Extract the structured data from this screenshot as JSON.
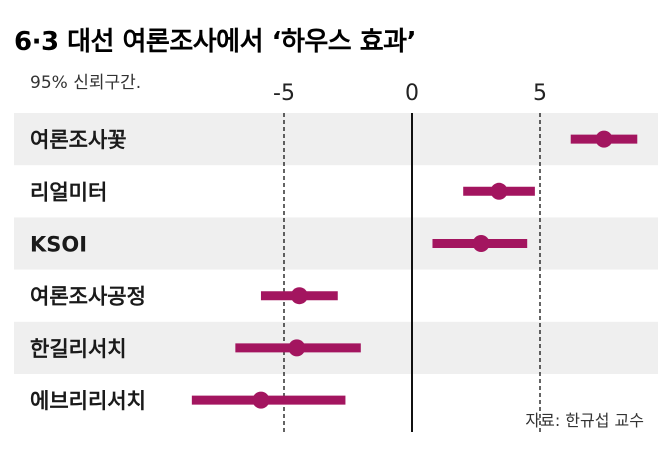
{
  "chart_data": {
    "type": "scatter",
    "title": "6·3 대선 여론조사에서 ‘하우스 효과’",
    "subtitle": "95% 신뢰구간.",
    "source": "자료: 한규섭 교수",
    "x_ticks": [
      -5,
      0,
      5
    ],
    "x_tick_labels": [
      "-5",
      "0",
      "5"
    ],
    "xlim": [
      -9.7,
      8.8
    ],
    "reference_lines": [
      -5,
      5
    ],
    "grid": false,
    "point_color": "#a3155f",
    "stripe_color": "#efefef",
    "categories": [
      "여론조사꽃",
      "리얼미터",
      "KSOI",
      "여론조사공정",
      "한길리서치",
      "에브리리서치"
    ],
    "series": [
      {
        "estimate": [
          7.5,
          3.4,
          2.7,
          -4.4,
          -4.5,
          -5.9
        ],
        "ci_low": [
          6.2,
          2.0,
          0.8,
          -5.9,
          -6.9,
          -8.6
        ],
        "ci_high": [
          8.8,
          4.8,
          4.5,
          -2.9,
          -2.0,
          -2.6
        ]
      }
    ]
  }
}
